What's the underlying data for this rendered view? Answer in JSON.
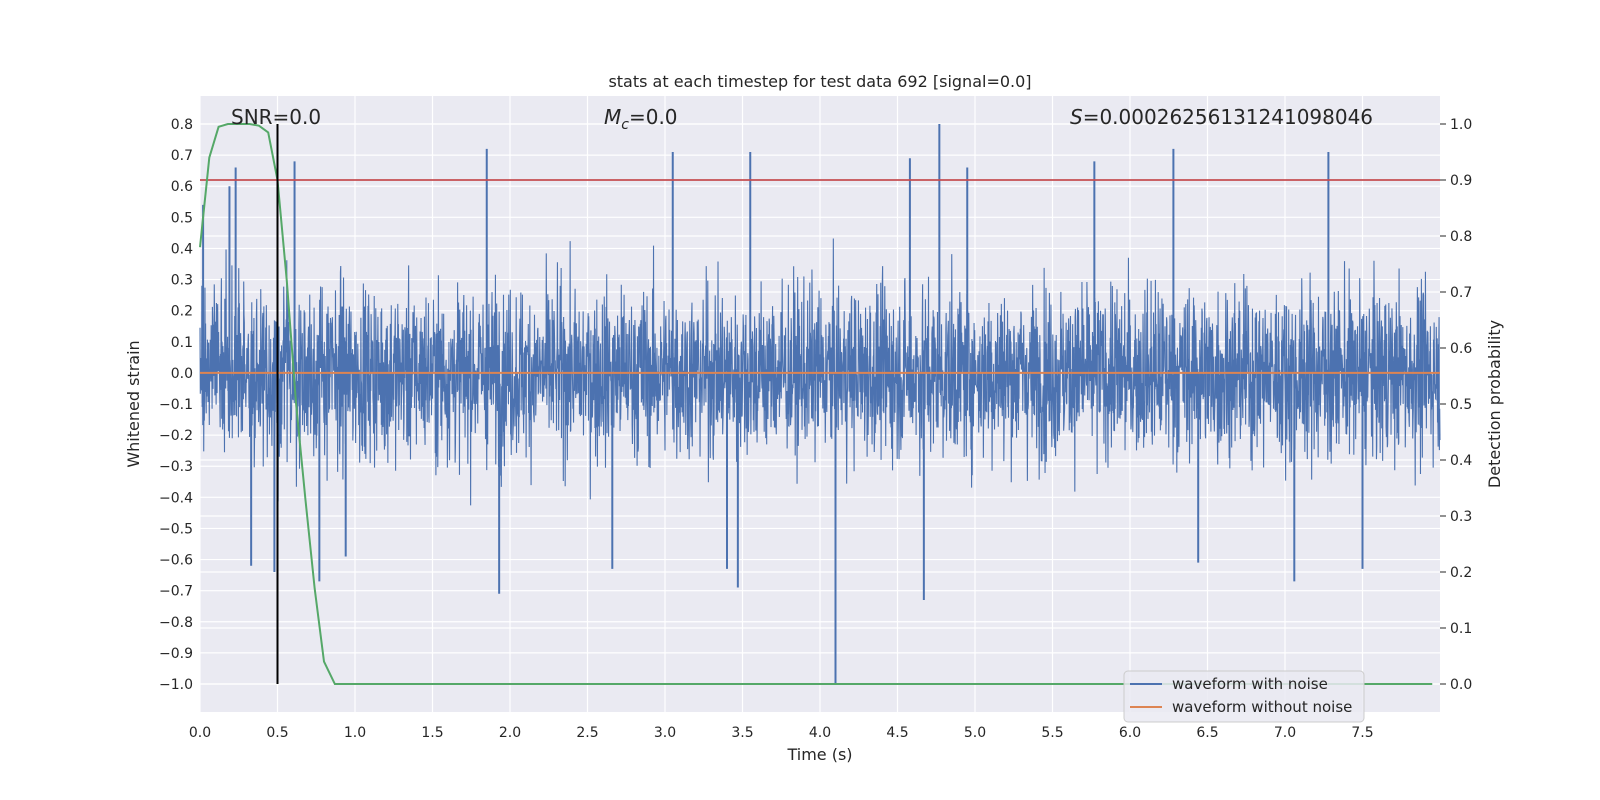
{
  "chart_data": {
    "type": "line",
    "title": "stats at each timestep for test data 692 [signal=0.0]",
    "xlabel": "Time (s)",
    "ylabel": "Whitened strain",
    "y2label": "Detection probability",
    "xlim": [
      0.0,
      8.0
    ],
    "ylim": [
      -1.09,
      0.89
    ],
    "y2lim": [
      -0.05,
      1.05
    ],
    "x_ticks": [
      "0.0",
      "0.5",
      "1.0",
      "1.5",
      "2.0",
      "2.5",
      "3.0",
      "3.5",
      "4.0",
      "4.5",
      "5.0",
      "5.5",
      "6.0",
      "6.5",
      "7.0",
      "7.5"
    ],
    "x_tick_values": [
      0.0,
      0.5,
      1.0,
      1.5,
      2.0,
      2.5,
      3.0,
      3.5,
      4.0,
      4.5,
      5.0,
      5.5,
      6.0,
      6.5,
      7.0,
      7.5
    ],
    "y_ticks": [
      "0.8",
      "0.7",
      "0.6",
      "0.5",
      "0.4",
      "0.3",
      "0.2",
      "0.1",
      "0.0",
      "−0.1",
      "−0.2",
      "−0.3",
      "−0.4",
      "−0.5",
      "−0.6",
      "−0.7",
      "−0.8",
      "−0.9",
      "−1.0"
    ],
    "y_tick_values": [
      0.8,
      0.7,
      0.6,
      0.5,
      0.4,
      0.3,
      0.2,
      0.1,
      0.0,
      -0.1,
      -0.2,
      -0.3,
      -0.4,
      -0.5,
      -0.6,
      -0.7,
      -0.8,
      -0.9,
      -1.0
    ],
    "y2_ticks": [
      "1.0",
      "0.9",
      "0.8",
      "0.7",
      "0.6",
      "0.5",
      "0.4",
      "0.3",
      "0.2",
      "0.1",
      "0.0"
    ],
    "y2_tick_values": [
      1.0,
      0.9,
      0.8,
      0.7,
      0.6,
      0.5,
      0.4,
      0.3,
      0.2,
      0.1,
      0.0
    ],
    "grid": true,
    "legend_position": "bottom-right",
    "annotations": {
      "snr": "SNR=0.0",
      "mc_symbol": "M",
      "mc_sub": "c",
      "mc_value": "=0.0",
      "s_symbol": "S",
      "s_value": "=0.00026256131241098046"
    },
    "series": [
      {
        "name": "waveform with noise",
        "color": "#4c72b0",
        "axis": "left",
        "style": "dense noise, typical band about ±0.3",
        "spikes": [
          {
            "x": 0.02,
            "y": 0.54
          },
          {
            "x": 0.19,
            "y": 0.6
          },
          {
            "x": 0.23,
            "y": 0.66
          },
          {
            "x": 0.33,
            "y": -0.62
          },
          {
            "x": 0.48,
            "y": -0.64
          },
          {
            "x": 0.61,
            "y": 0.68
          },
          {
            "x": 0.77,
            "y": -0.67
          },
          {
            "x": 0.94,
            "y": -0.59
          },
          {
            "x": 1.85,
            "y": 0.72
          },
          {
            "x": 1.93,
            "y": -0.71
          },
          {
            "x": 2.66,
            "y": -0.63
          },
          {
            "x": 3.05,
            "y": 0.71
          },
          {
            "x": 3.4,
            "y": -0.63
          },
          {
            "x": 3.55,
            "y": 0.71
          },
          {
            "x": 3.47,
            "y": -0.69
          },
          {
            "x": 4.1,
            "y": -1.0
          },
          {
            "x": 4.58,
            "y": 0.69
          },
          {
            "x": 4.77,
            "y": 0.8
          },
          {
            "x": 4.67,
            "y": -0.73
          },
          {
            "x": 4.95,
            "y": 0.66
          },
          {
            "x": 5.77,
            "y": 0.68
          },
          {
            "x": 6.28,
            "y": 0.72
          },
          {
            "x": 6.44,
            "y": -0.61
          },
          {
            "x": 7.06,
            "y": -0.67
          },
          {
            "x": 7.28,
            "y": 0.71
          },
          {
            "x": 7.5,
            "y": -0.63
          }
        ]
      },
      {
        "name": "waveform without noise",
        "color": "#dd8452",
        "axis": "left",
        "x": [
          0.0,
          8.0
        ],
        "y": [
          0.0,
          0.0
        ]
      },
      {
        "color": "#55a868",
        "axis": "right",
        "x": [
          0.0,
          0.03,
          0.06,
          0.12,
          0.18,
          0.25,
          0.32,
          0.38,
          0.44,
          0.5,
          0.56,
          0.62,
          0.68,
          0.74,
          0.8,
          0.87,
          1.0,
          2.0,
          3.0,
          4.0,
          5.0,
          6.0,
          7.0,
          7.95
        ],
        "y": [
          0.78,
          0.86,
          0.94,
          0.995,
          1.0,
          1.0,
          1.0,
          0.997,
          0.985,
          0.9,
          0.72,
          0.5,
          0.33,
          0.17,
          0.04,
          0.0,
          0.0,
          0.0,
          0.0,
          0.0,
          0.0,
          0.0,
          0.0,
          0.0
        ]
      },
      {
        "color": "#c44e52",
        "axis": "right",
        "style": "horizontal threshold line",
        "y": 0.9
      },
      {
        "color": "#000000",
        "axis": "left",
        "style": "vertical marker line",
        "x": 0.5,
        "y": [
          -1.0,
          0.8
        ]
      }
    ]
  }
}
